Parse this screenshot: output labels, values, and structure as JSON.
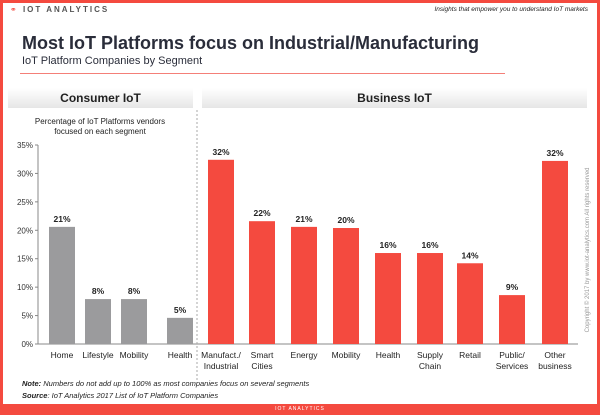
{
  "header": {
    "logo": "IOT ANALYTICS",
    "tagline": "Insights that empower you to understand IoT markets",
    "title": "Most IoT Platforms focus on Industrial/Manufacturing",
    "subtitle": "IoT Platform Companies by Segment"
  },
  "groups": {
    "consumer": "Consumer IoT",
    "business": "Business IoT"
  },
  "notes": {
    "note_label": "Note:",
    "note": " Numbers do not add up to 100% as most companies focus on several segments",
    "source_label": "Source",
    "source": ": IoT Analytics 2017 List of IoT Platform Companies"
  },
  "copyright": "Copyright © 2017 by www.iot-analytics.com All rights reserved",
  "footer": "IOT ANALYTICS",
  "chart_data": {
    "type": "bar",
    "ylabel": "Percentage of IoT Platforms vendors focused on each segment",
    "ylim": [
      0,
      35
    ],
    "yticks": [
      "0%",
      "5%",
      "10%",
      "15%",
      "20%",
      "25%",
      "30%",
      "35%"
    ],
    "categories": [
      "Home",
      "Lifestyle",
      "Mobility",
      "Health",
      "Manufact./\nIndustrial",
      "Smart\nCities",
      "Energy",
      "Mobility",
      "Health",
      "Supply\nChain",
      "Retail",
      "Public/\nServices",
      "Other\nbusiness"
    ],
    "values": [
      21,
      8,
      8,
      5,
      32,
      22,
      21,
      20,
      16,
      16,
      14,
      9,
      32
    ],
    "bar_heights_pct": [
      20.6,
      7.9,
      7.9,
      4.6,
      32.4,
      21.6,
      20.6,
      20.4,
      16.0,
      16.0,
      14.2,
      8.6,
      32.2
    ],
    "labels": [
      "21%",
      "8%",
      "8%",
      "5%",
      "32%",
      "22%",
      "21%",
      "20%",
      "16%",
      "16%",
      "14%",
      "9%",
      "32%"
    ],
    "group": [
      "consumer",
      "consumer",
      "consumer",
      "consumer",
      "business",
      "business",
      "business",
      "business",
      "business",
      "business",
      "business",
      "business",
      "business"
    ],
    "colors": {
      "consumer": "#9b9b9d",
      "business": "#f44a3f"
    },
    "grid": false
  }
}
